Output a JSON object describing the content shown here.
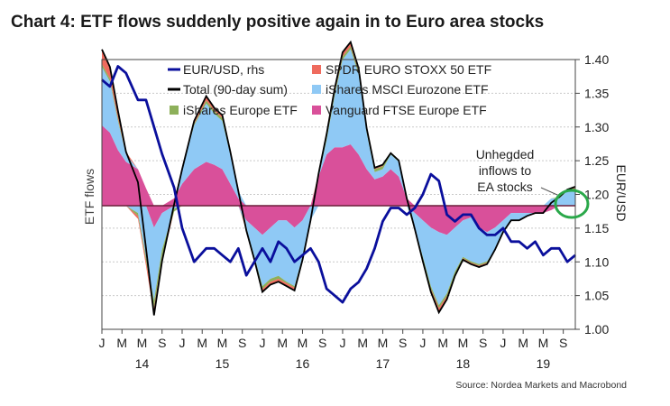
{
  "title": "Chart 4: ETF flows suddenly positive again in to Euro area stocks",
  "source": "Source: Nordea Markets and Macrobond",
  "chart_data": {
    "type": "area",
    "ylabel_left": "ETF flows",
    "ylabel_right": "EUR/USD",
    "right_axis": {
      "ylim": [
        1.0,
        1.4
      ],
      "ticks": [
        "1.40",
        "1.35",
        "1.30",
        "1.25",
        "1.20",
        "1.15",
        "1.10",
        "1.05",
        "1.00"
      ]
    },
    "x_month_ticks": [
      "J",
      "M",
      "M",
      "S",
      "J",
      "M",
      "M",
      "S",
      "J",
      "M",
      "M",
      "S",
      "J",
      "M",
      "M",
      "S",
      "J",
      "M",
      "M",
      "S",
      "J",
      "M",
      "M",
      "S"
    ],
    "x_year_labels": [
      "14",
      "15",
      "16",
      "17",
      "18",
      "19"
    ],
    "x_range": [
      2014.0,
      2019.9
    ],
    "flow_ylim": [
      -1.0,
      1.0
    ],
    "annotation": {
      "lines": [
        "Unhegded",
        "inflows to",
        "EA stocks"
      ]
    },
    "colors": {
      "eurusd": "#0a0f9c",
      "total": "#000000",
      "spdr": "#ef6b5e",
      "ishares_msci": "#8fc9f5",
      "ishares_europe": "#8db05a",
      "vanguard": "#d9509a",
      "zero_line": "#6b1f3a",
      "circle": "#2aa84a"
    },
    "legend": [
      {
        "name": "EUR/USD, rhs",
        "color": "#0a0f9c",
        "kind": "line"
      },
      {
        "name": "SPDR EURO STOXX 50 ETF",
        "color": "#ef6b5e",
        "kind": "box"
      },
      {
        "name": "Total (90-day sum)",
        "color": "#000000",
        "kind": "line"
      },
      {
        "name": "iShares MSCI Eurozone ETF",
        "color": "#8fc9f5",
        "kind": "box"
      },
      {
        "name": "iShares Europe ETF",
        "color": "#8db05a",
        "kind": "box"
      },
      {
        "name": "Vanguard FTSE Europe ETF",
        "color": "#d9509a",
        "kind": "box"
      }
    ],
    "series": {
      "x": [
        2014.0,
        2014.1,
        2014.2,
        2014.3,
        2014.45,
        2014.55,
        2014.65,
        2014.75,
        2014.9,
        2015.0,
        2015.15,
        2015.3,
        2015.4,
        2015.5,
        2015.6,
        2015.7,
        2015.8,
        2015.9,
        2016.0,
        2016.1,
        2016.2,
        2016.3,
        2016.4,
        2016.5,
        2016.6,
        2016.7,
        2016.8,
        2016.9,
        2017.0,
        2017.1,
        2017.2,
        2017.3,
        2017.4,
        2017.5,
        2017.6,
        2017.7,
        2017.8,
        2017.9,
        2018.0,
        2018.1,
        2018.2,
        2018.3,
        2018.4,
        2018.5,
        2018.6,
        2018.7,
        2018.8,
        2018.9,
        2019.0,
        2019.1,
        2019.2,
        2019.3,
        2019.4,
        2019.5,
        2019.6,
        2019.7,
        2019.8,
        2019.9
      ],
      "vanguard": [
        0.55,
        0.5,
        0.38,
        0.3,
        0.25,
        0.12,
        -0.15,
        -0.05,
        0.05,
        0.15,
        0.25,
        0.3,
        0.28,
        0.25,
        0.15,
        0.05,
        -0.1,
        -0.15,
        -0.2,
        -0.15,
        -0.1,
        -0.1,
        -0.15,
        -0.1,
        0.0,
        0.2,
        0.35,
        0.4,
        0.4,
        0.42,
        0.35,
        0.25,
        0.18,
        0.2,
        0.25,
        0.2,
        0.05,
        -0.05,
        -0.1,
        -0.15,
        -0.18,
        -0.2,
        -0.15,
        -0.1,
        -0.08,
        -0.15,
        -0.18,
        -0.15,
        -0.1,
        -0.05,
        -0.05,
        -0.05,
        -0.05,
        -0.05,
        -0.03,
        0.0,
        0.0,
        0.0
      ],
      "ishares_msci": [
        0.4,
        0.35,
        0.2,
        0.05,
        -0.05,
        -0.35,
        -0.5,
        -0.25,
        -0.02,
        0.1,
        0.3,
        0.4,
        0.35,
        0.33,
        0.2,
        0.05,
        -0.05,
        -0.2,
        -0.35,
        -0.35,
        -0.38,
        -0.42,
        -0.4,
        -0.25,
        -0.1,
        0.0,
        0.1,
        0.35,
        0.6,
        0.65,
        0.55,
        0.25,
        0.05,
        0.05,
        0.1,
        0.1,
        0.0,
        -0.1,
        -0.25,
        -0.4,
        -0.5,
        -0.4,
        -0.3,
        -0.25,
        -0.3,
        -0.25,
        -0.2,
        -0.15,
        -0.08,
        -0.05,
        -0.05,
        -0.02,
        0.0,
        0.0,
        0.05,
        0.05,
        0.1,
        0.1
      ],
      "ishares_europe": [
        0.02,
        0.02,
        0.02,
        0.0,
        -0.02,
        -0.03,
        -0.05,
        -0.05,
        -0.02,
        0.0,
        0.01,
        0.02,
        0.02,
        0.02,
        0.01,
        0.0,
        -0.01,
        -0.01,
        -0.02,
        -0.02,
        -0.02,
        -0.01,
        -0.01,
        -0.01,
        0.0,
        0.01,
        0.02,
        0.02,
        0.02,
        0.02,
        0.02,
        0.02,
        0.02,
        0.02,
        0.01,
        0.01,
        0.0,
        -0.01,
        -0.02,
        -0.02,
        -0.02,
        -0.02,
        -0.02,
        -0.01,
        -0.01,
        -0.01,
        -0.01,
        0.0,
        0.0,
        0.0,
        0.0,
        0.0,
        0.0,
        0.0,
        0.0,
        0.01,
        0.01,
        0.02
      ],
      "spdr": [
        0.1,
        0.08,
        0.05,
        0.02,
        -0.02,
        -0.03,
        -0.05,
        -0.03,
        0.0,
        0.0,
        0.02,
        0.03,
        0.02,
        0.02,
        0.01,
        0.0,
        -0.01,
        -0.01,
        -0.02,
        -0.02,
        -0.02,
        -0.02,
        -0.02,
        -0.01,
        0.0,
        0.01,
        0.02,
        0.03,
        0.03,
        0.03,
        0.02,
        0.01,
        0.01,
        0.01,
        0.0,
        0.0,
        0.0,
        0.0,
        -0.01,
        -0.02,
        -0.03,
        -0.02,
        -0.01,
        -0.01,
        -0.01,
        -0.01,
        -0.01,
        0.0,
        0.0,
        0.0,
        0.0,
        0.0,
        0.0,
        0.0,
        0.0,
        0.0,
        0.0,
        0.01
      ],
      "eurusd": [
        1.37,
        1.36,
        1.39,
        1.38,
        1.34,
        1.34,
        1.3,
        1.26,
        1.21,
        1.15,
        1.1,
        1.12,
        1.12,
        1.11,
        1.1,
        1.12,
        1.08,
        1.1,
        1.12,
        1.1,
        1.13,
        1.12,
        1.1,
        1.11,
        1.12,
        1.1,
        1.06,
        1.05,
        1.04,
        1.06,
        1.07,
        1.09,
        1.12,
        1.16,
        1.18,
        1.18,
        1.17,
        1.18,
        1.2,
        1.23,
        1.22,
        1.17,
        1.16,
        1.17,
        1.17,
        1.15,
        1.14,
        1.14,
        1.15,
        1.13,
        1.13,
        1.12,
        1.13,
        1.11,
        1.12,
        1.12,
        1.1,
        1.11
      ]
    }
  }
}
